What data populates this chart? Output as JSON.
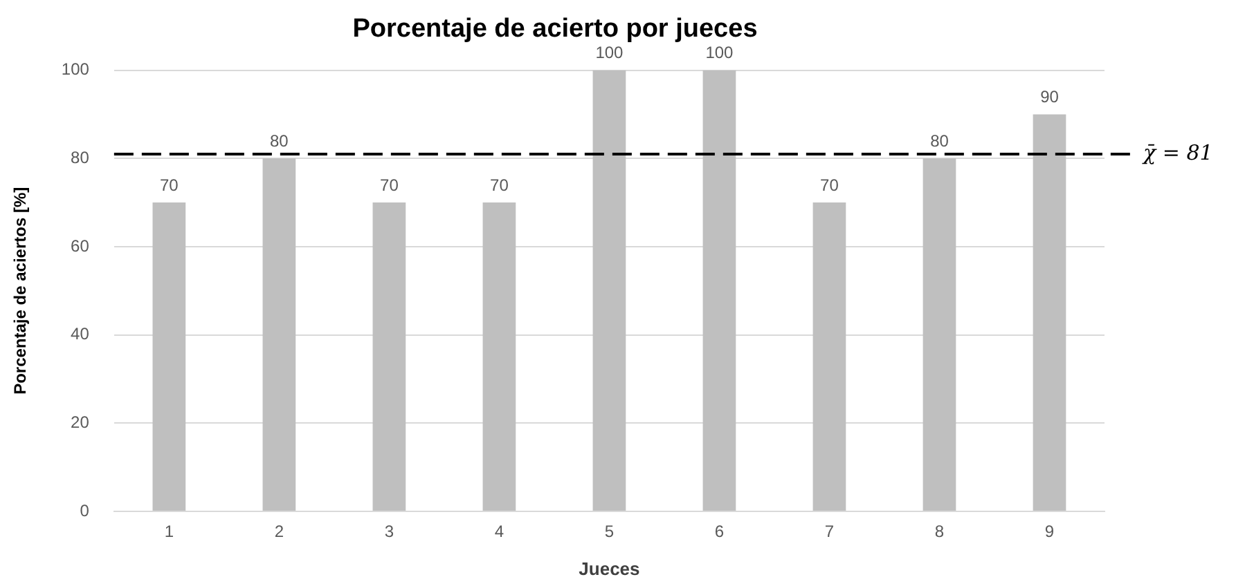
{
  "chart_data": {
    "type": "bar",
    "title": "Porcentaje de acierto por jueces",
    "xlabel": "Jueces",
    "ylabel": "Porcentaje de aciertos [%]",
    "categories": [
      "1",
      "2",
      "3",
      "4",
      "5",
      "6",
      "7",
      "8",
      "9"
    ],
    "values": [
      70,
      80,
      70,
      70,
      100,
      100,
      70,
      80,
      90
    ],
    "color": "#bfbfbf",
    "ylim": [
      0,
      100
    ],
    "yticks": [
      0,
      20,
      40,
      60,
      80,
      100
    ],
    "grid": "y",
    "data_labels": true,
    "ref_lines": [
      {
        "axis": "y",
        "value": 81,
        "label": "χ̄ = 81",
        "color": "#000000",
        "line_style": "dashed"
      }
    ]
  }
}
